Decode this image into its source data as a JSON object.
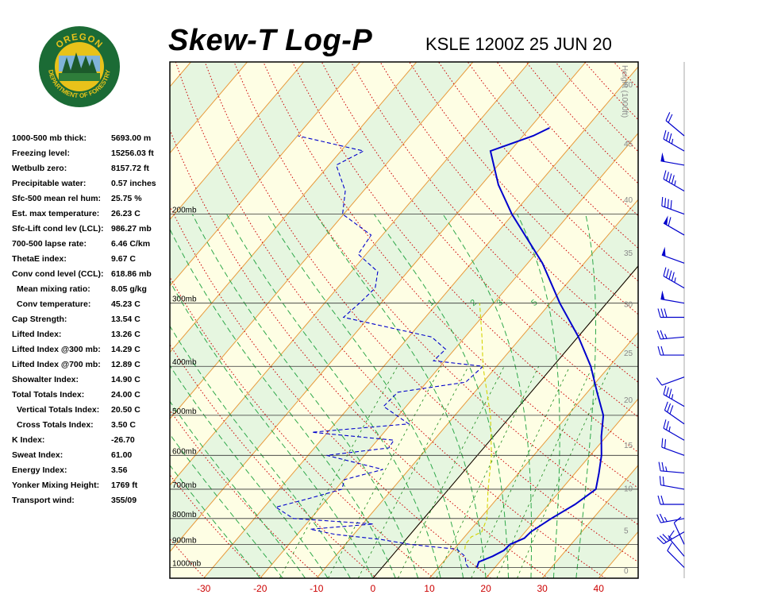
{
  "header": {
    "title": "Skew-T Log-P",
    "station": "KSLE 1200Z 25 JUN 20"
  },
  "logo": {
    "top_text": "OREGON",
    "bottom_text": "DEPARTMENT OF FORESTRY",
    "colors": {
      "ring": "#1b6b35",
      "ring_fill": "#2e7d3a",
      "gold": "#e8c21a",
      "sky": "#7fb3d9"
    }
  },
  "stats": [
    {
      "label": "1000-500 mb thick:",
      "value": "5693.00 m"
    },
    {
      "label": "Freezing level:",
      "value": "15256.03 ft"
    },
    {
      "label": "Wetbulb zero:",
      "value": "8157.72 ft"
    },
    {
      "label": "Precipitable water:",
      "value": "0.57 inches"
    },
    {
      "label": "Sfc-500 mean rel hum:",
      "value": "25.75 %"
    },
    {
      "label": "Est. max temperature:",
      "value": "26.23 C"
    },
    {
      "label": "Sfc-Lift cond lev (LCL):",
      "value": "986.27 mb"
    },
    {
      "label": "700-500 lapse rate:",
      "value": "6.46 C/km"
    },
    {
      "label": "ThetaE index:",
      "value": "9.67 C"
    },
    {
      "label": "Conv cond level (CCL):",
      "value": "618.86 mb"
    },
    {
      "label": "Mean mixing ratio:",
      "value": "8.05 g/kg",
      "indent": true
    },
    {
      "label": "Conv temperature:",
      "value": "45.23 C",
      "indent": true
    },
    {
      "label": "Cap Strength:",
      "value": "13.54 C"
    },
    {
      "label": "Lifted Index:",
      "value": "13.26 C"
    },
    {
      "label": "Lifted Index @300 mb:",
      "value": "14.29 C"
    },
    {
      "label": "Lifted Index @700 mb:",
      "value": "12.89 C"
    },
    {
      "label": "Showalter Index:",
      "value": "14.90 C"
    },
    {
      "label": "Total Totals Index:",
      "value": "24.00 C"
    },
    {
      "label": "Vertical Totals Index:",
      "value": "20.50 C",
      "indent": true
    },
    {
      "label": "Cross Totals Index:",
      "value": "3.50 C",
      "indent": true
    },
    {
      "label": "K Index:",
      "value": "-26.70"
    },
    {
      "label": "Sweat Index:",
      "value": "61.00"
    },
    {
      "label": "Energy Index:",
      "value": "3.56"
    },
    {
      "label": "Yonker Mixing Height:",
      "value": "1769 ft"
    },
    {
      "label": "Transport wind:",
      "value": "355/09"
    }
  ],
  "chart_data": {
    "type": "skew-t log-p",
    "x_tick_labels": [
      "-30",
      "-20",
      "-10",
      "0",
      "10",
      "20",
      "30",
      "40"
    ],
    "x_ticks": [
      -30,
      -20,
      -10,
      0,
      10,
      20,
      30,
      40
    ],
    "xlim": [
      -36,
      47
    ],
    "ylim": [
      1050,
      100
    ],
    "y_scale": "log",
    "pressure_levels": [
      1000,
      900,
      800,
      700,
      600,
      500,
      400,
      300,
      200
    ],
    "pressure_labels": [
      "1000mb",
      "900mb",
      "800mb",
      "700mb",
      "600mb",
      "500mb",
      "400mb",
      "300mb",
      "200mb"
    ],
    "height_axis_title": "Height (1000ft)",
    "height_ticks": [
      0,
      5,
      10,
      15,
      20,
      25,
      30,
      35,
      40,
      45,
      50
    ],
    "height_tick_labels": [
      "0",
      "5",
      "10",
      "15",
      "20",
      "25",
      "30",
      "35",
      "40",
      "45",
      "50"
    ],
    "mixing_ratio_labels": [
      "1",
      "2",
      "3",
      "5"
    ],
    "series": [
      {
        "name": "",
        "color": "#0000cc",
        "style": "solid",
        "points": [
          [
            1000,
            16.8
          ],
          [
            990,
            16.6
          ],
          [
            975,
            16.3
          ],
          [
            950,
            17.9
          ],
          [
            925,
            19.0
          ],
          [
            900,
            19.2
          ],
          [
            875,
            20.8
          ],
          [
            850,
            21.0
          ],
          [
            800,
            22.6
          ],
          [
            750,
            24.7
          ],
          [
            700,
            26.1
          ],
          [
            650,
            24.2
          ],
          [
            600,
            22.0
          ],
          [
            550,
            19.1
          ],
          [
            500,
            16.3
          ],
          [
            450,
            11.7
          ],
          [
            400,
            6.7
          ],
          [
            350,
            0.1
          ],
          [
            300,
            -8.3
          ],
          [
            250,
            -17.4
          ],
          [
            200,
            -30.2
          ],
          [
            175,
            -37.0
          ],
          [
            150,
            -43.5
          ],
          [
            140,
            -38.2
          ],
          [
            135,
            -36.5
          ]
        ]
      },
      {
        "name": "",
        "color": "#0000cc",
        "style": "dashed",
        "points": [
          [
            1000,
            15.3
          ],
          [
            985,
            14.4
          ],
          [
            950,
            13.0
          ],
          [
            920,
            10.5
          ],
          [
            900,
            1.5
          ],
          [
            880,
            -4.4
          ],
          [
            860,
            -13.3
          ],
          [
            840,
            -18.5
          ],
          [
            820,
            -8.1
          ],
          [
            800,
            -23.1
          ],
          [
            760,
            -27.9
          ],
          [
            730,
            -23.3
          ],
          [
            700,
            -18.9
          ],
          [
            670,
            -19.9
          ],
          [
            640,
            -14.6
          ],
          [
            600,
            -26.7
          ],
          [
            580,
            -16.8
          ],
          [
            560,
            -17.1
          ],
          [
            540,
            -32.8
          ],
          [
            520,
            -16.9
          ],
          [
            480,
            -24.0
          ],
          [
            450,
            -23.6
          ],
          [
            430,
            -13.1
          ],
          [
            400,
            -12.4
          ],
          [
            390,
            -22.0
          ],
          [
            370,
            -21.6
          ],
          [
            350,
            -25.9
          ],
          [
            320,
            -44.5
          ],
          [
            300,
            -43.8
          ],
          [
            280,
            -43.3
          ],
          [
            260,
            -45.3
          ],
          [
            240,
            -51.4
          ],
          [
            220,
            -52.0
          ],
          [
            200,
            -60.2
          ],
          [
            180,
            -63.2
          ],
          [
            160,
            -68.7
          ],
          [
            150,
            -66.0
          ],
          [
            140,
            -79.9
          ]
        ]
      },
      {
        "name": "",
        "color": "#d4d400",
        "style": "dashed",
        "points": [
          [
            920,
            11.9
          ],
          [
            900,
            11.3
          ],
          [
            870,
            11.2
          ],
          [
            850,
            12.3
          ],
          [
            800,
            11.2
          ],
          [
            700,
            7.0
          ],
          [
            600,
            2.5
          ],
          [
            500,
            -3.7
          ],
          [
            400,
            -12.4
          ],
          [
            350,
            -17.0
          ],
          [
            300,
            -22.5
          ]
        ]
      }
    ],
    "wind_barbs": [
      {
        "p": 1000,
        "dir": 315,
        "spd": 10
      },
      {
        "p": 950,
        "dir": 320,
        "spd": 10
      },
      {
        "p": 900,
        "dir": 335,
        "spd": 10
      },
      {
        "p": 850,
        "dir": 240,
        "spd": 35
      },
      {
        "p": 800,
        "dir": 260,
        "spd": 25
      },
      {
        "p": 750,
        "dir": 270,
        "spd": 20
      },
      {
        "p": 700,
        "dir": 280,
        "spd": 20
      },
      {
        "p": 650,
        "dir": 275,
        "spd": 25
      },
      {
        "p": 600,
        "dir": 290,
        "spd": 20
      },
      {
        "p": 560,
        "dir": 300,
        "spd": 25
      },
      {
        "p": 520,
        "dir": 305,
        "spd": 30
      },
      {
        "p": 480,
        "dir": 300,
        "spd": 35
      },
      {
        "p": 420,
        "dir": 250,
        "spd": 10
      },
      {
        "p": 380,
        "dir": 270,
        "spd": 20
      },
      {
        "p": 350,
        "dir": 265,
        "spd": 25
      },
      {
        "p": 320,
        "dir": 270,
        "spd": 30
      },
      {
        "p": 300,
        "dir": 280,
        "spd": 50
      },
      {
        "p": 280,
        "dir": 300,
        "spd": 45
      },
      {
        "p": 250,
        "dir": 290,
        "spd": 50
      },
      {
        "p": 220,
        "dir": 300,
        "spd": 60
      },
      {
        "p": 200,
        "dir": 290,
        "spd": 40
      },
      {
        "p": 180,
        "dir": 300,
        "spd": 45
      },
      {
        "p": 160,
        "dir": 280,
        "spd": 50
      },
      {
        "p": 150,
        "dir": 300,
        "spd": 35
      },
      {
        "p": 140,
        "dir": 310,
        "spd": 20
      }
    ],
    "background": {
      "main": "#eef6dc",
      "band_yellow": "#ffffe4",
      "band_green": "#e4f6e0"
    },
    "isotherm_color": "#e89a3c",
    "dry_adiabat_color": "#cc0000",
    "moist_adiabat_color": "#2ea84a",
    "mixing_ratio_color": "#1a8a1a",
    "grid": true
  }
}
